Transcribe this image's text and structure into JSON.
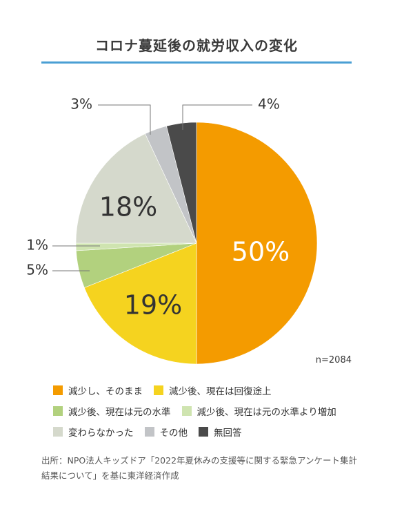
{
  "chart_data": {
    "type": "pie",
    "title": "コロナ蔓延後の就労収入の変化",
    "sample_size_label": "n=2084",
    "categories": [
      "減少し、そのまま",
      "減少後、現在は回復途上",
      "減少後、現在は元の水準",
      "減少後、現在は元の水準より増加",
      "変わらなかった",
      "その他",
      "無回答"
    ],
    "values": [
      50,
      19,
      5,
      1,
      18,
      3,
      4
    ],
    "value_labels": [
      "50%",
      "19%",
      "5%",
      "1%",
      "18%",
      "3%",
      "4%"
    ],
    "colors": [
      "#f49b00",
      "#f5d31f",
      "#b2d17e",
      "#cfe4b0",
      "#d5d9cc",
      "#c2c4c7",
      "#4a4a4a"
    ],
    "legend_placement": "bottom"
  },
  "source_text": "出所：NPO法人キッズドア「2022年夏休みの支援等に関する緊急アンケート集計結果について」を基に東洋経済作成"
}
